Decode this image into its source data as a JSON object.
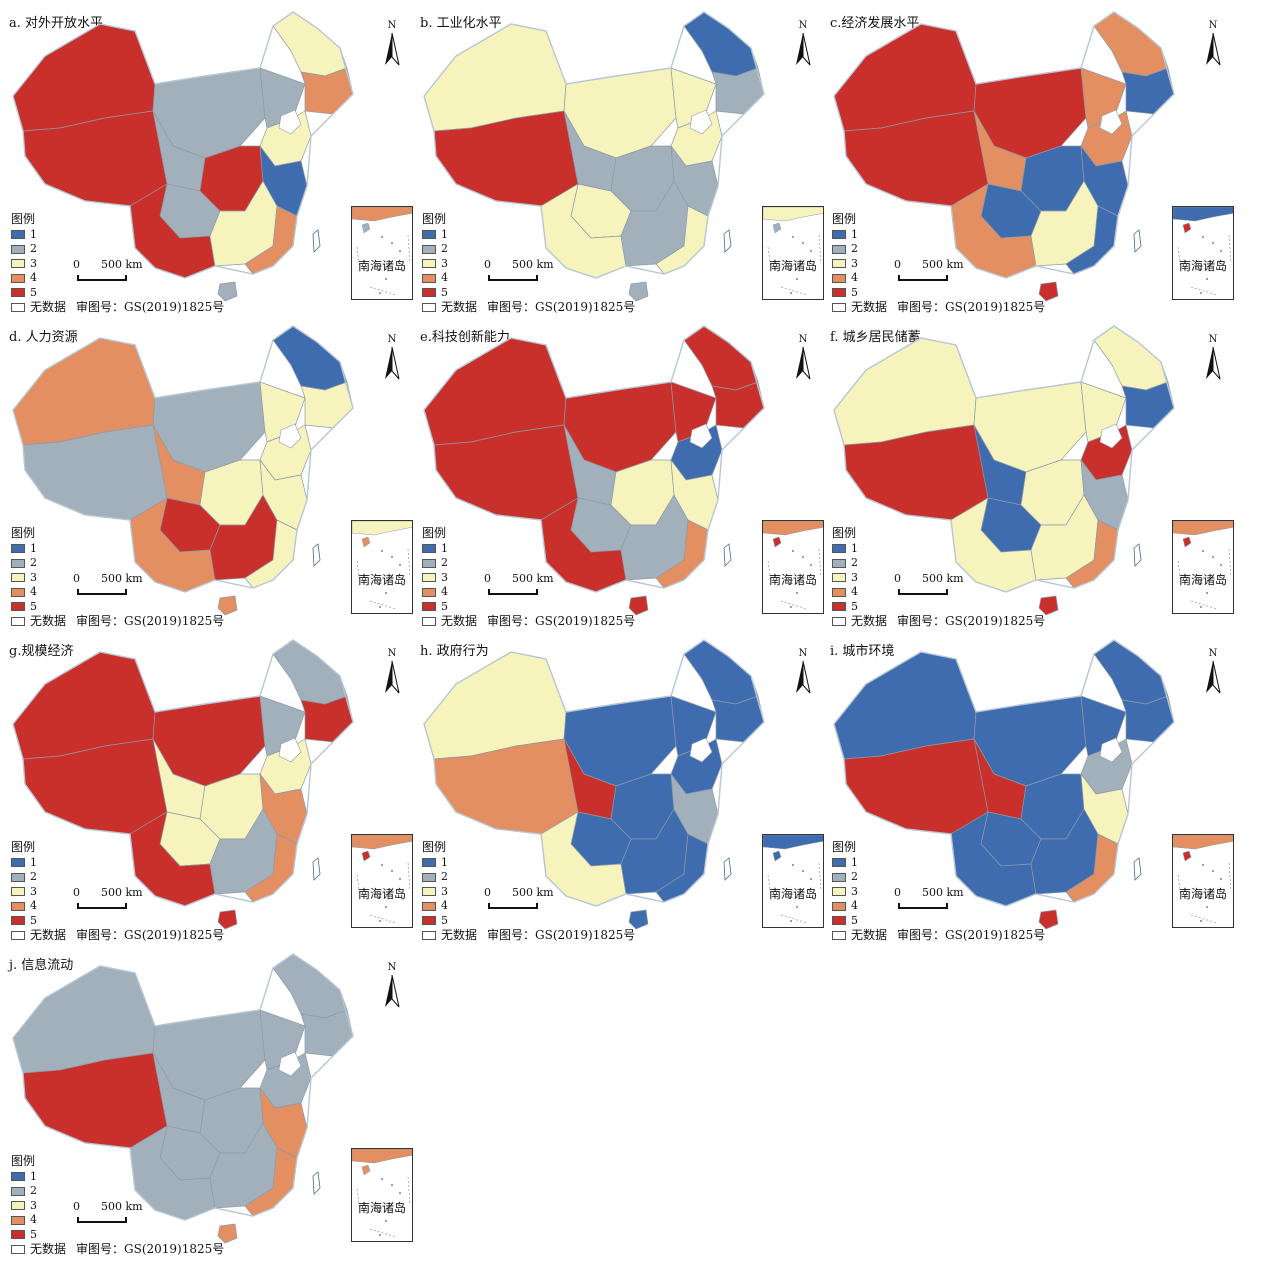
{
  "legend": {
    "title": "图例",
    "classes": [
      {
        "label": "1",
        "color": "#3f6cae"
      },
      {
        "label": "2",
        "color": "#a2b0bb"
      },
      {
        "label": "3",
        "color": "#f6f3bd"
      },
      {
        "label": "4",
        "color": "#e38f62"
      },
      {
        "label": "5",
        "color": "#c9302c"
      }
    ],
    "no_data": "无数据",
    "review_number": "审图号：GS(2019)1825号"
  },
  "scale_zero": "0",
  "scale_text": "500 km",
  "north_label": "N",
  "inset_label": "南海诸岛",
  "panels": [
    {
      "title": "a. 对外开放水平",
      "zones": [
        5,
        2,
        2,
        3,
        4,
        3,
        5,
        2,
        2,
        5,
        5,
        3,
        1,
        2,
        4
      ]
    },
    {
      "title": "b. 工业化水平",
      "zones": [
        3,
        3,
        3,
        1,
        2,
        3,
        5,
        2,
        3,
        2,
        3,
        2,
        2,
        2,
        3
      ]
    },
    {
      "title": "c.经济发展水平",
      "zones": [
        5,
        5,
        4,
        4,
        1,
        4,
        5,
        4,
        1,
        1,
        4,
        3,
        1,
        5,
        1
      ]
    },
    {
      "title": "d. 人力资源",
      "zones": [
        4,
        2,
        3,
        1,
        3,
        3,
        2,
        4,
        5,
        3,
        4,
        5,
        3,
        4,
        3
      ]
    },
    {
      "title": "e.科技创新能力",
      "zones": [
        5,
        5,
        5,
        5,
        5,
        1,
        5,
        2,
        2,
        3,
        5,
        2,
        3,
        5,
        4
      ]
    },
    {
      "title": "f. 城乡居民储蓄",
      "zones": [
        3,
        3,
        3,
        3,
        1,
        5,
        5,
        1,
        1,
        3,
        3,
        3,
        2,
        5,
        4
      ]
    },
    {
      "title": "g.规模经济",
      "zones": [
        5,
        5,
        2,
        2,
        5,
        3,
        5,
        3,
        3,
        3,
        5,
        2,
        4,
        5,
        4
      ]
    },
    {
      "title": "h. 政府行为",
      "zones": [
        3,
        1,
        1,
        1,
        1,
        1,
        4,
        5,
        1,
        1,
        3,
        1,
        2,
        1,
        1
      ]
    },
    {
      "title": "i. 城市环境",
      "zones": [
        1,
        1,
        1,
        1,
        1,
        2,
        5,
        5,
        1,
        1,
        1,
        1,
        3,
        5,
        4
      ]
    },
    {
      "title": "j. 信息流动",
      "zones": [
        2,
        2,
        2,
        2,
        2,
        2,
        5,
        2,
        2,
        2,
        2,
        2,
        4,
        4,
        4
      ]
    }
  ]
}
